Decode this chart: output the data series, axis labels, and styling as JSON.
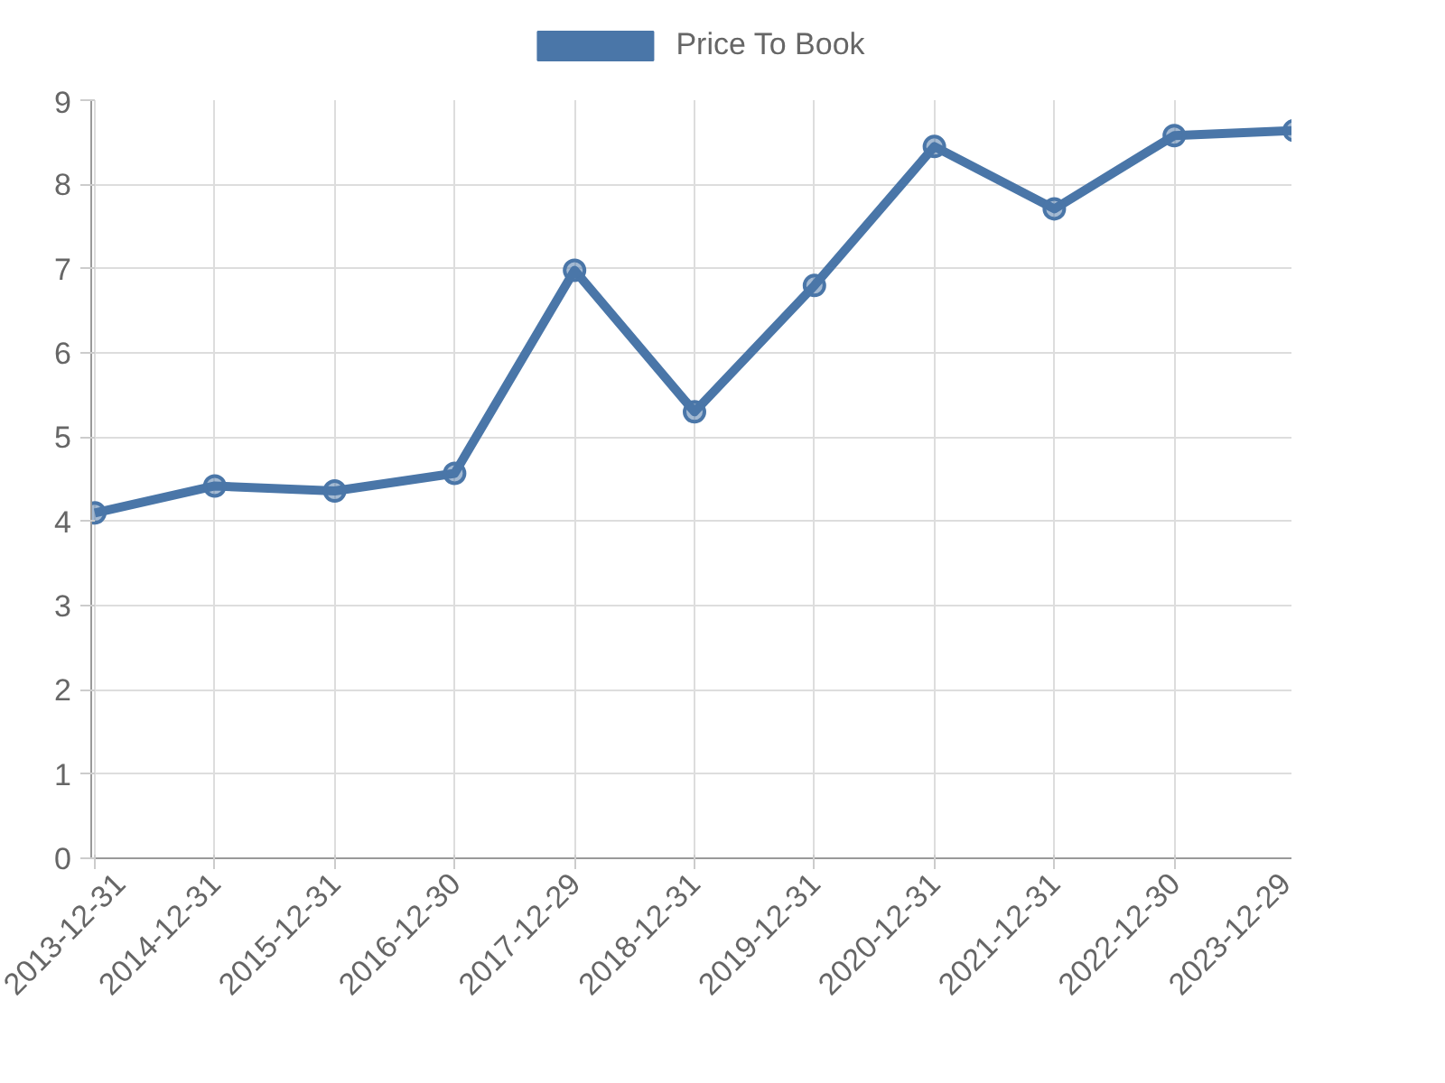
{
  "chart_data": {
    "type": "line",
    "categories": [
      "2013-12-31",
      "2014-12-31",
      "2015-12-31",
      "2016-12-30",
      "2017-12-29",
      "2018-12-31",
      "2019-12-31",
      "2020-12-31",
      "2021-12-31",
      "2022-12-30",
      "2023-12-29"
    ],
    "series": [
      {
        "name": "Price To Book",
        "color": "#4a76a8",
        "values": [
          4.1,
          4.42,
          4.36,
          4.57,
          6.98,
          5.3,
          6.8,
          8.45,
          7.71,
          8.58,
          8.64
        ]
      }
    ],
    "ylim": [
      0,
      9
    ],
    "yticks": [
      0,
      1,
      2,
      3,
      4,
      5,
      6,
      7,
      8,
      9
    ],
    "grid": true,
    "legend": "top",
    "marker": "circle",
    "line_style": "solid"
  }
}
